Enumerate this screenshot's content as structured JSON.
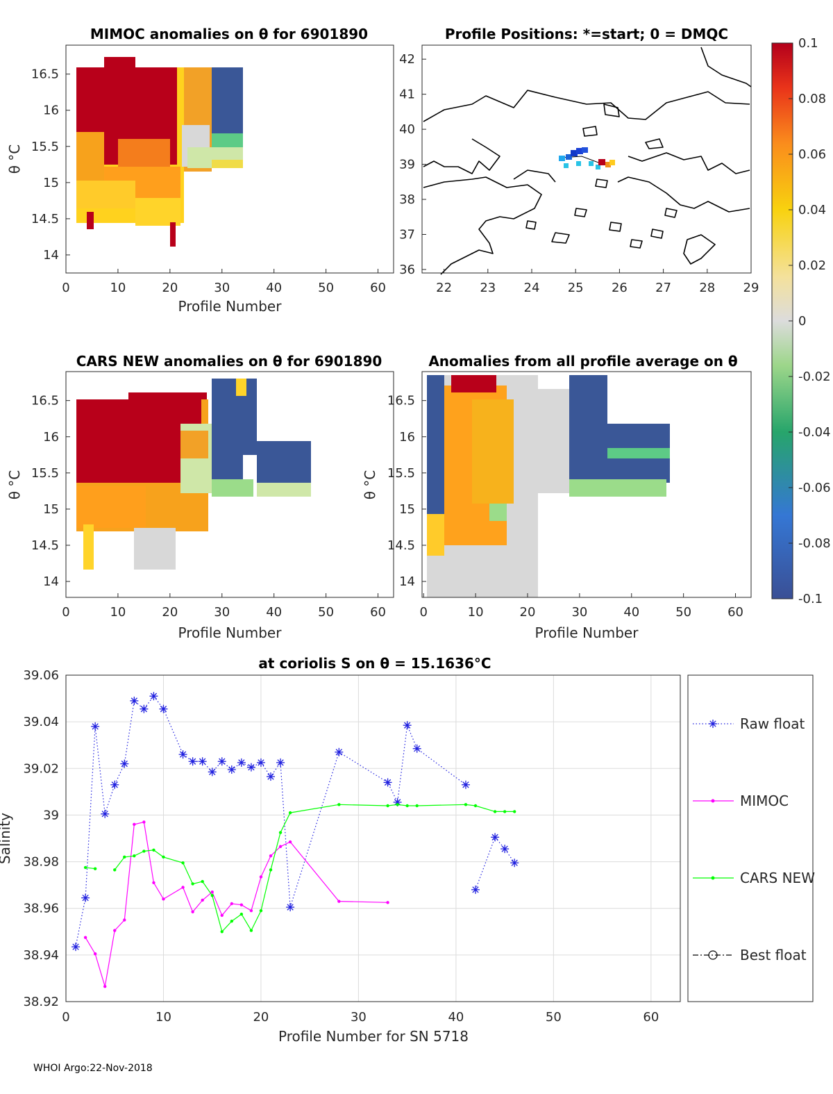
{
  "footer": {
    "text": "WHOI Argo:22-Nov-2018"
  },
  "colors": {
    "raw": "#1f1fdf",
    "mimoc": "#ff00ff",
    "cars": "#00ff00",
    "best": "#000000",
    "axis": "#262626"
  },
  "panels": {
    "mimoc": {
      "title": "MIMOC anomalies on θ  for 6901890",
      "xlabel": "Profile Number",
      "ylabel": "θ °C",
      "xticks": [
        "0",
        "10",
        "20",
        "30",
        "40",
        "50",
        "60"
      ],
      "yticks": [
        "16.5",
        "16",
        "15.5",
        "15",
        "14.5",
        "14"
      ]
    },
    "map": {
      "title": "Profile Positions: *=start; 0 = DMQC",
      "xticks": [
        "22",
        "23",
        "24",
        "25",
        "26",
        "27",
        "28",
        "29"
      ],
      "yticks": [
        "42",
        "41",
        "40",
        "39",
        "38",
        "37",
        "36"
      ]
    },
    "cars": {
      "title": "CARS NEW anomalies on θ for 6901890",
      "xlabel": "Profile Number",
      "ylabel": "θ °C",
      "xticks": [
        "0",
        "10",
        "20",
        "30",
        "40",
        "50",
        "60"
      ],
      "yticks": [
        "16.5",
        "16",
        "15.5",
        "15",
        "14.5",
        "14"
      ]
    },
    "avg": {
      "title": "Anomalies from all profile average on θ",
      "xlabel": "Profile Number",
      "ylabel": "θ °C",
      "xticks": [
        "0",
        "10",
        "20",
        "30",
        "40",
        "50",
        "60"
      ],
      "yticks": [
        "16.5",
        "16",
        "15.5",
        "15",
        "14.5",
        "14"
      ]
    }
  },
  "colorbar": {
    "ticks": [
      "0.1",
      "0.08",
      "0.06",
      "0.04",
      "0.02",
      "0",
      "-0.02",
      "-0.04",
      "-0.06",
      "-0.08",
      "-0.1"
    ]
  },
  "chart_data": {
    "type": "line",
    "title": "at coriolis S on θ = 15.1636°C",
    "xlabel": "Profile Number for SN 5718",
    "ylabel": "Salinity",
    "xlim": [
      0,
      63
    ],
    "ylim": [
      38.92,
      39.06
    ],
    "xticks": [
      "0",
      "10",
      "20",
      "30",
      "40",
      "50",
      "60"
    ],
    "yticks": [
      "39.06",
      "39.04",
      "39.02",
      "39",
      "38.98",
      "38.96",
      "38.94",
      "38.92"
    ],
    "series": [
      {
        "name": "Raw float",
        "style": "dotted-star",
        "points": [
          [
            1,
            38.9435
          ],
          [
            2,
            38.9645
          ],
          [
            3,
            39.038
          ],
          [
            4,
            39.0005
          ],
          [
            5,
            39.013
          ],
          [
            6,
            39.022
          ],
          [
            7,
            39.049
          ],
          [
            8,
            39.0455
          ],
          [
            9,
            39.051
          ],
          [
            10,
            39.0455
          ],
          [
            12,
            39.026
          ],
          [
            13,
            39.023
          ],
          [
            14,
            39.023
          ],
          [
            15,
            39.0185
          ],
          [
            16,
            39.023
          ],
          [
            17,
            39.0195
          ],
          [
            18,
            39.0225
          ],
          [
            19,
            39.0205
          ],
          [
            20,
            39.0225
          ],
          [
            21,
            39.0165
          ],
          [
            22,
            39.0225
          ],
          [
            23,
            38.9605
          ],
          [
            28,
            39.027
          ],
          [
            33,
            39.014
          ],
          [
            34,
            39.0055
          ],
          [
            35,
            39.0385
          ],
          [
            36,
            39.0285
          ],
          [
            41,
            39.013
          ],
          [
            42,
            38.968
          ],
          [
            44,
            38.9905
          ],
          [
            45,
            38.9855
          ],
          [
            46,
            38.9795
          ]
        ],
        "breaks_before": [
          42
        ]
      },
      {
        "name": "MIMOC",
        "style": "solid-dot",
        "points": [
          [
            2,
            38.9475
          ],
          [
            3,
            38.9405
          ],
          [
            4,
            38.9265
          ],
          [
            5,
            38.9505
          ],
          [
            6,
            38.955
          ],
          [
            7,
            38.996
          ],
          [
            8,
            38.997
          ],
          [
            9,
            38.971
          ],
          [
            10,
            38.964
          ],
          [
            12,
            38.969
          ],
          [
            13,
            38.9585
          ],
          [
            14,
            38.9635
          ],
          [
            15,
            38.967
          ],
          [
            16,
            38.957
          ],
          [
            17,
            38.962
          ],
          [
            18,
            38.9615
          ],
          [
            19,
            38.959
          ],
          [
            20,
            38.9735
          ],
          [
            21,
            38.9825
          ],
          [
            22,
            38.9865
          ],
          [
            23,
            38.9885
          ],
          [
            28,
            38.963
          ],
          [
            33,
            38.9625
          ]
        ],
        "breaks_before": []
      },
      {
        "name": "CARS NEW",
        "style": "solid-dot",
        "points": [
          [
            2,
            38.9775
          ],
          [
            3,
            38.977
          ],
          [
            5,
            38.9765
          ],
          [
            6,
            38.982
          ],
          [
            7,
            38.9825
          ],
          [
            8,
            38.9845
          ],
          [
            9,
            38.985
          ],
          [
            10,
            38.982
          ],
          [
            12,
            38.9795
          ],
          [
            13,
            38.9705
          ],
          [
            14,
            38.9715
          ],
          [
            15,
            38.9655
          ],
          [
            16,
            38.95
          ],
          [
            17,
            38.9545
          ],
          [
            18,
            38.9575
          ],
          [
            19,
            38.9505
          ],
          [
            20,
            38.959
          ],
          [
            21,
            38.9765
          ],
          [
            22,
            38.9925
          ],
          [
            23,
            39.001
          ],
          [
            28,
            39.0045
          ],
          [
            33,
            39.004
          ],
          [
            34,
            39.0045
          ],
          [
            35,
            39.004
          ],
          [
            36,
            39.004
          ],
          [
            41,
            39.0045
          ],
          [
            42,
            39.004
          ],
          [
            44,
            39.0015
          ],
          [
            45,
            39.0015
          ],
          [
            46,
            39.0015
          ]
        ],
        "breaks_before": [
          5
        ]
      },
      {
        "name": "Best float",
        "style": "dashdot-circle",
        "points": [],
        "breaks_before": []
      }
    ],
    "legend": [
      "Raw float",
      "MIMOC",
      "CARS NEW",
      "Best float"
    ]
  }
}
